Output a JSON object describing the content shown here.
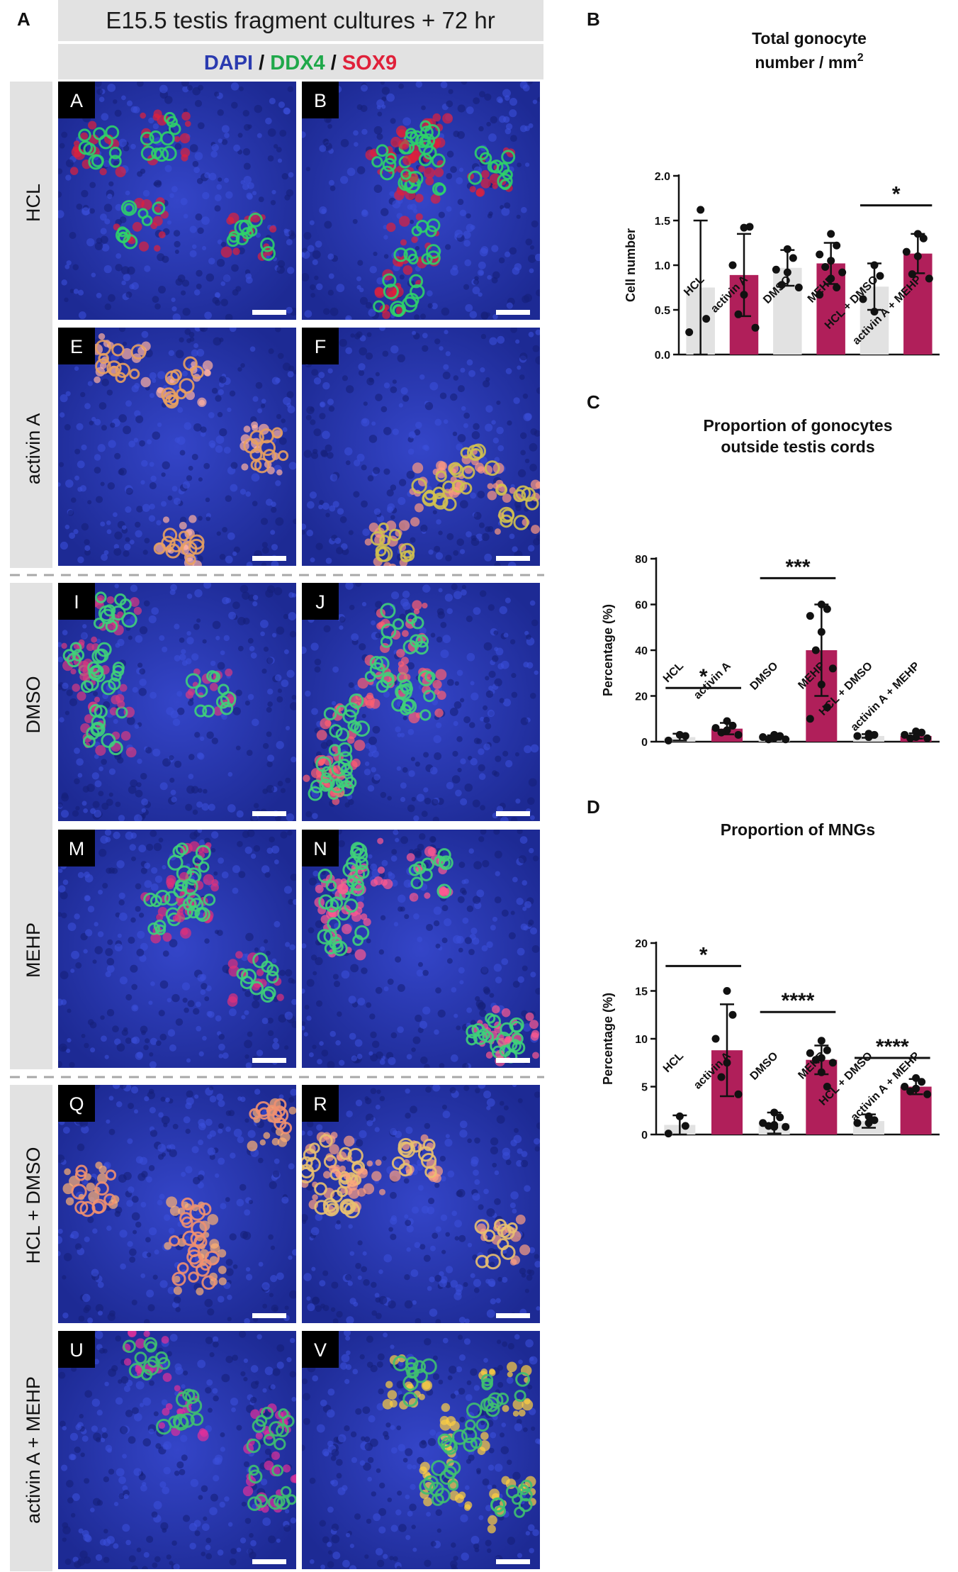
{
  "figure": {
    "panel_letters": [
      "A",
      "B",
      "C",
      "D"
    ],
    "header": {
      "title": "E15.5 testis fragment cultures + 72 hr",
      "stain_dapi": "DAPI",
      "stain_sep1": " / ",
      "stain_ddx4": "DDX4",
      "stain_sep2": " / ",
      "stain_sox9": "SOX9"
    },
    "row_labels": [
      "HCL",
      "activin A",
      "DMSO",
      "MEHP",
      "HCL + DMSO",
      "activin A + MEHP"
    ],
    "image_letters": [
      [
        "A",
        "B"
      ],
      [
        "E",
        "F"
      ],
      [
        "I",
        "J"
      ],
      [
        "M",
        "N"
      ],
      [
        "Q",
        "R"
      ],
      [
        "U",
        "V"
      ]
    ],
    "colors": {
      "dapi": "#2b3bb0",
      "ddx4": "#1fa84a",
      "sox9": "#e0213a",
      "bar_control": "#e2e2e2",
      "bar_treated": "#b01f5a",
      "label_band": "#e2e2e2"
    }
  },
  "chart_data": [
    {
      "type": "bar",
      "panel": "B",
      "title_line1": "Total gonocyte",
      "title_line2": "number / mm",
      "title_sup": "2",
      "ylabel": "Cell number",
      "ylim": [
        0,
        2.0
      ],
      "yticks": [
        "0.0",
        "0.5",
        "1.0",
        "1.5",
        "2.0"
      ],
      "ytick_values": [
        0,
        0.5,
        1.0,
        1.5,
        2.0
      ],
      "categories": [
        "HCL",
        "activin A",
        "DMSO",
        "MEHP",
        "HCL + DMSO",
        "activin A + MEHP"
      ],
      "values": [
        0.75,
        0.89,
        0.97,
        1.02,
        0.76,
        1.13
      ],
      "error": [
        0.75,
        0.46,
        0.2,
        0.23,
        0.26,
        0.22
      ],
      "points": [
        [
          1.62,
          0.4,
          0.25
        ],
        [
          1.42,
          1.43,
          1.0,
          0.67,
          0.45,
          0.3
        ],
        [
          1.18,
          1.08,
          0.95,
          0.92,
          0.78,
          0.75
        ],
        [
          1.35,
          1.22,
          1.12,
          1.05,
          0.98,
          0.92,
          0.85,
          0.75,
          0.67
        ],
        [
          1.0,
          0.88,
          0.62,
          0.48
        ],
        [
          1.35,
          1.3,
          1.15,
          1.1,
          0.9,
          0.85
        ]
      ],
      "significance": [
        {
          "from": 4,
          "to": 5,
          "label": "*",
          "y": 1.67
        }
      ]
    },
    {
      "type": "bar",
      "panel": "C",
      "title_line1": "Proportion of gonocytes",
      "title_line2": "outside testis cords",
      "title_sup": "",
      "ylabel": "Percentage (%)",
      "ylim": [
        0,
        80
      ],
      "yticks": [
        "0",
        "20",
        "40",
        "60",
        "80"
      ],
      "ytick_values": [
        0,
        20,
        40,
        60,
        80
      ],
      "categories": [
        "HCL",
        "activin A",
        "DMSO",
        "MEHP",
        "HCL + DMSO",
        "activin A + MEHP"
      ],
      "values": [
        2.0,
        5.7,
        1.8,
        40,
        2.5,
        2.5
      ],
      "error": [
        1.5,
        2.5,
        1.0,
        20,
        0.8,
        1.2
      ],
      "points": [
        [
          3.0,
          2.5,
          0.5
        ],
        [
          9.0,
          7.0,
          6.0,
          5.0,
          4.0,
          3.0
        ],
        [
          3.0,
          2.5,
          2.0,
          1.5,
          1.0,
          1.0
        ],
        [
          60,
          58,
          55,
          48,
          40,
          32,
          25,
          15,
          10
        ],
        [
          3.5,
          3.0,
          2.5,
          2.0
        ],
        [
          4.5,
          4.0,
          3.0,
          2.0,
          1.5,
          1.5
        ]
      ],
      "significance": [
        {
          "from": 0,
          "to": 1,
          "label": "*",
          "y": 23.5
        },
        {
          "from": 2,
          "to": 3,
          "label": "***",
          "y": 71.5
        }
      ]
    },
    {
      "type": "bar",
      "panel": "D",
      "title_line1": "Proportion of MNGs",
      "title_line2": "",
      "title_sup": "",
      "ylabel": "Percentage (%)",
      "ylim": [
        0,
        20
      ],
      "yticks": [
        "0",
        "5",
        "10",
        "15",
        "20"
      ],
      "ytick_values": [
        0,
        5,
        10,
        15,
        20
      ],
      "categories": [
        "HCL",
        "activin A",
        "DMSO",
        "MEHP",
        "HCL + DMSO",
        "activin A + MEHP"
      ],
      "values": [
        1.0,
        8.8,
        1.2,
        7.8,
        1.4,
        5.0
      ],
      "error": [
        1.0,
        4.8,
        1.1,
        1.5,
        0.7,
        0.8
      ],
      "points": [
        [
          1.9,
          0.9,
          0.1
        ],
        [
          15.0,
          12.5,
          10.0,
          7.5,
          6.0,
          4.2
        ],
        [
          2.3,
          1.8,
          1.2,
          1.0,
          0.9,
          0.8,
          0.8
        ],
        [
          9.8,
          8.8,
          8.5,
          8.0,
          7.8,
          7.5,
          6.5,
          5.0
        ],
        [
          1.9,
          1.5,
          1.2,
          1.2
        ],
        [
          5.9,
          5.5,
          5.0,
          4.8,
          4.5,
          4.2
        ]
      ],
      "significance": [
        {
          "from": 0,
          "to": 1,
          "label": "*",
          "y": 17.6
        },
        {
          "from": 2,
          "to": 3,
          "label": "****",
          "y": 12.8
        },
        {
          "from": 4,
          "to": 5,
          "label": "****",
          "y": 8.0
        }
      ]
    }
  ]
}
